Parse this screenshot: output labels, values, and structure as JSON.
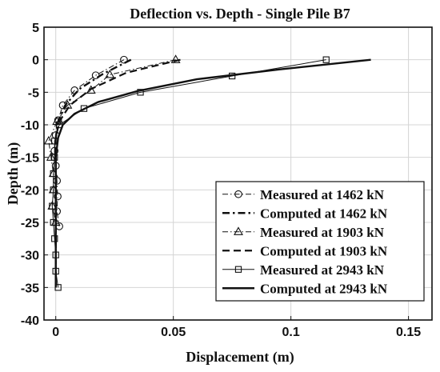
{
  "chart_data": {
    "type": "line",
    "title": "Deflection vs. Depth - Single Pile B7",
    "xlabel": "Displacement (m)",
    "ylabel": "Depth (m)",
    "xlim": [
      -0.005,
      0.16
    ],
    "ylim": [
      -40,
      5
    ],
    "xticks": [
      0,
      0.05,
      0.1,
      0.15
    ],
    "xtick_labels": [
      "0",
      "0.05",
      "0.1",
      "0.15"
    ],
    "yticks": [
      5,
      0,
      -5,
      -10,
      -15,
      -20,
      -25,
      -30,
      -35,
      -40
    ],
    "ytick_labels": [
      "5",
      "0",
      "-5",
      "-10",
      "-15",
      "-20",
      "-25",
      "-30",
      "-35",
      "-40"
    ],
    "grid": true,
    "legend_position": "bottom-right",
    "series": [
      {
        "name": "Measured at 1462 kN",
        "marker": "circle",
        "line": "dashdot-thin",
        "points": [
          [
            0.029,
            0
          ],
          [
            0.017,
            -2.4
          ],
          [
            0.008,
            -4.7
          ],
          [
            0.003,
            -7.0
          ],
          [
            0.001,
            -9.3
          ],
          [
            0.0,
            -11.6
          ],
          [
            -0.0005,
            -14.0
          ],
          [
            0.0,
            -16.3
          ],
          [
            0.0005,
            -18.6
          ],
          [
            0.0008,
            -21.0
          ],
          [
            0.0005,
            -23.3
          ],
          [
            0.0015,
            -25.6
          ]
        ]
      },
      {
        "name": "Computed at 1462 kN",
        "marker": "none",
        "line": "dashdot-thick",
        "points": [
          [
            0.032,
            0
          ],
          [
            0.02,
            -2.2
          ],
          [
            0.01,
            -4.5
          ],
          [
            0.004,
            -7.0
          ],
          [
            0.001,
            -9.5
          ],
          [
            0.0,
            -12.0
          ],
          [
            0.0,
            -16.0
          ],
          [
            0.0,
            -20.0
          ],
          [
            0.0,
            -25.0
          ],
          [
            0.0,
            -30.0
          ],
          [
            0.0,
            -35.0
          ]
        ]
      },
      {
        "name": "Measured at 1903 kN",
        "marker": "triangle",
        "line": "dashdot-thin",
        "points": [
          [
            0.051,
            0
          ],
          [
            0.023,
            -2.3
          ],
          [
            0.015,
            -4.7
          ],
          [
            0.005,
            -7.0
          ],
          [
            0.0005,
            -9.5
          ],
          [
            -0.003,
            -12.5
          ],
          [
            -0.002,
            -15.0
          ],
          [
            -0.001,
            -17.5
          ],
          [
            -0.001,
            -20.0
          ],
          [
            -0.0015,
            -22.5
          ],
          [
            0.0,
            -25.0
          ]
        ]
      },
      {
        "name": "Computed at 1903 kN",
        "marker": "none",
        "line": "dashed-thick",
        "points": [
          [
            0.053,
            0
          ],
          [
            0.03,
            -2.0
          ],
          [
            0.015,
            -4.5
          ],
          [
            0.006,
            -7.0
          ],
          [
            0.0015,
            -9.5
          ],
          [
            0.0,
            -12.0
          ],
          [
            0.0,
            -16.0
          ],
          [
            0.0,
            -20.0
          ],
          [
            0.0,
            -25.0
          ],
          [
            0.0,
            -30.0
          ],
          [
            0.0,
            -35.0
          ]
        ]
      },
      {
        "name": "Measured at 2943 kN",
        "marker": "square",
        "line": "solid-thin",
        "points": [
          [
            0.115,
            0
          ],
          [
            0.075,
            -2.5
          ],
          [
            0.036,
            -5.0
          ],
          [
            0.012,
            -7.5
          ],
          [
            0.0015,
            -10.0
          ],
          [
            -0.0005,
            -12.5
          ],
          [
            -0.0005,
            -15.0
          ],
          [
            -0.001,
            -17.5
          ],
          [
            -0.001,
            -20.0
          ],
          [
            -0.0015,
            -22.5
          ],
          [
            -0.001,
            -25.0
          ],
          [
            -0.0005,
            -27.5
          ],
          [
            0.0,
            -30.0
          ],
          [
            0.0,
            -32.5
          ],
          [
            0.001,
            -35.0
          ]
        ]
      },
      {
        "name": "Computed at 2943 kN",
        "marker": "none",
        "line": "solid-thick",
        "points": [
          [
            0.134,
            0
          ],
          [
            0.095,
            -1.5
          ],
          [
            0.06,
            -3.0
          ],
          [
            0.035,
            -4.8
          ],
          [
            0.018,
            -6.5
          ],
          [
            0.008,
            -8.3
          ],
          [
            0.003,
            -10.0
          ],
          [
            0.001,
            -12.0
          ],
          [
            0.0,
            -15.0
          ],
          [
            0.0,
            -20.0
          ],
          [
            0.0,
            -25.0
          ],
          [
            0.0,
            -30.0
          ],
          [
            0.0,
            -35.0
          ]
        ]
      }
    ]
  }
}
